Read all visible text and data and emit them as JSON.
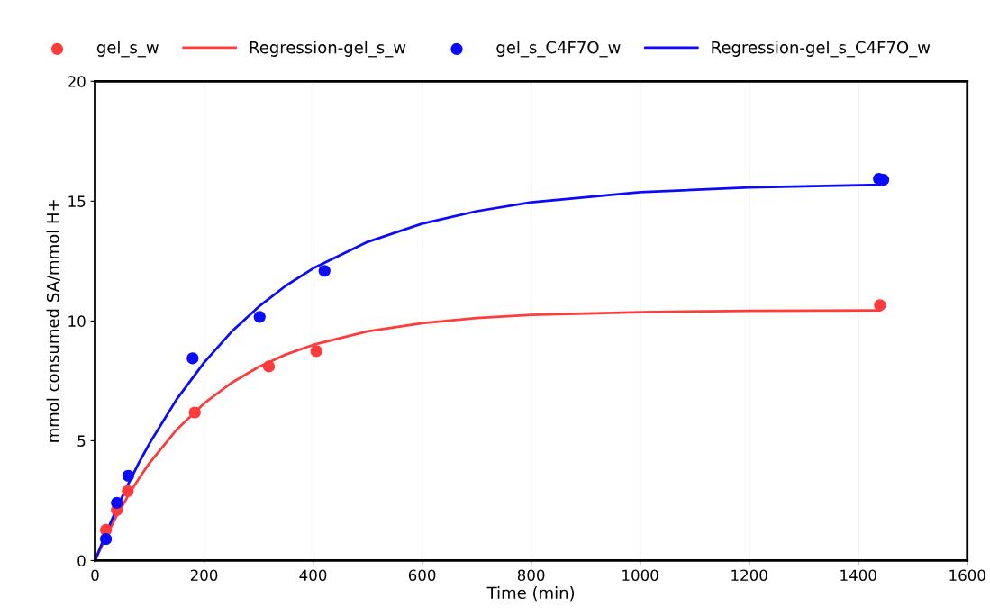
{
  "chart_data": {
    "type": "scatter",
    "xlabel": "Time (min)",
    "ylabel": "mmol consumed SA/mmol H+",
    "xlim": [
      0,
      1600
    ],
    "ylim": [
      0,
      20
    ],
    "xticks": [
      0,
      200,
      400,
      600,
      800,
      1000,
      1200,
      1400,
      1600
    ],
    "yticks": [
      0,
      5,
      10,
      15,
      20
    ],
    "grid": "x",
    "legend": "top",
    "series": [
      {
        "name": "gel_s_w",
        "marker": "circle",
        "color": "#ff3b3b",
        "x": [
          20,
          40,
          60,
          183,
          319,
          406,
          1440
        ],
        "values": [
          1.28,
          2.11,
          2.9,
          6.18,
          8.1,
          8.74,
          10.66
        ]
      },
      {
        "name": "Regression-gel_s_w",
        "type": "line",
        "marker": "none",
        "color": "#ff3b3b",
        "x": [
          0,
          20,
          40,
          60,
          80,
          100,
          150,
          200,
          250,
          300,
          350,
          400,
          500,
          600,
          700,
          800,
          1000,
          1200,
          1440
        ],
        "values": [
          0,
          0.98,
          1.88,
          2.68,
          3.41,
          4.07,
          5.47,
          6.56,
          7.41,
          8.08,
          8.6,
          9.0,
          9.57,
          9.91,
          10.12,
          10.25,
          10.37,
          10.42,
          10.44
        ]
      },
      {
        "name": "gel_s_C4F7O_w",
        "marker": "circle",
        "color": "#0a0aff",
        "x": [
          20,
          40,
          61,
          179,
          302,
          421,
          1438,
          1446
        ],
        "values": [
          0.9,
          2.41,
          3.54,
          8.44,
          10.17,
          12.09,
          15.93,
          15.89
        ]
      },
      {
        "name": "Regression-gel_s_C4F7O_w",
        "type": "line",
        "marker": "none",
        "color": "#0a0aff",
        "x": [
          0,
          20,
          40,
          60,
          80,
          100,
          150,
          200,
          250,
          300,
          350,
          400,
          500,
          600,
          700,
          800,
          1000,
          1200,
          1440
        ],
        "values": [
          0,
          1.13,
          2.18,
          3.15,
          4.06,
          4.89,
          6.74,
          8.26,
          9.54,
          10.59,
          11.47,
          12.19,
          13.3,
          14.06,
          14.58,
          14.95,
          15.37,
          15.57,
          15.68
        ]
      }
    ]
  }
}
